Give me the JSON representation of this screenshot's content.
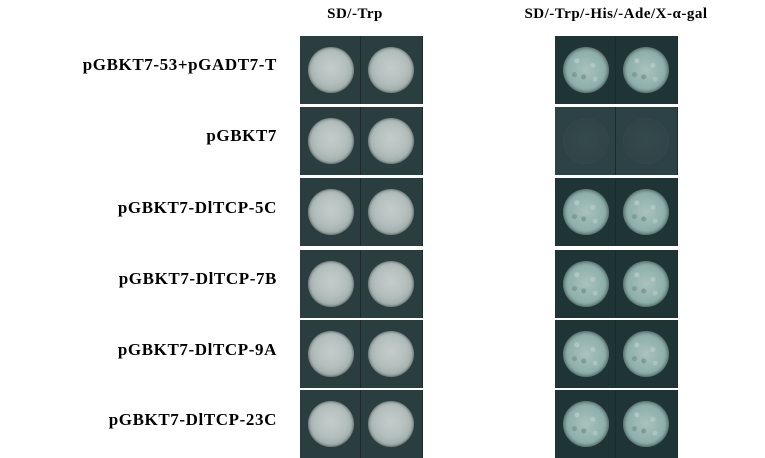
{
  "headers": {
    "sd_trp": "SD/-Trp",
    "sd_quad": "SD/-Trp/-His/-Ade/X-α-gal"
  },
  "rows": [
    {
      "label": "pGBKT7-53+pGADT7-T",
      "sd_trp": "growth",
      "sd_quad": "blue-growth"
    },
    {
      "label": "pGBKT7",
      "sd_trp": "growth",
      "sd_quad": "no-growth"
    },
    {
      "label": "pGBKT7-DlTCP-5C",
      "sd_trp": "growth",
      "sd_quad": "blue-growth"
    },
    {
      "label": "pGBKT7-DlTCP-7B",
      "sd_trp": "growth",
      "sd_quad": "blue-growth"
    },
    {
      "label": "pGBKT7-DlTCP-9A",
      "sd_trp": "growth",
      "sd_quad": "blue-growth"
    },
    {
      "label": "pGBKT7-DlTCP-23C",
      "sd_trp": "growth",
      "sd_quad": "blue-growth"
    }
  ]
}
